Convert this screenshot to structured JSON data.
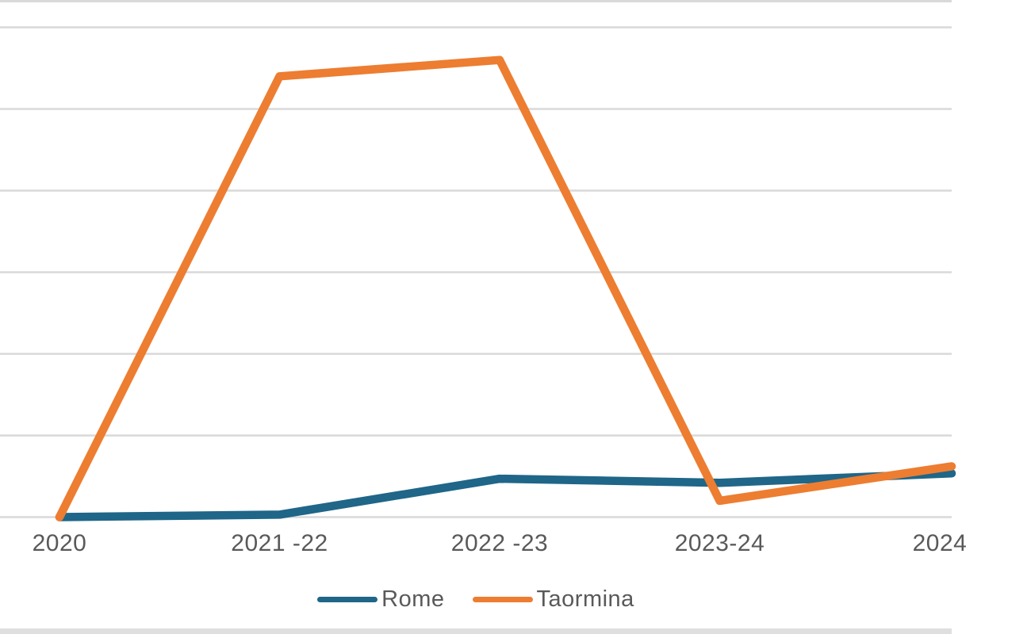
{
  "page": {
    "background": "#FFFFFF",
    "top_edge_line_color": "#D9D9D9",
    "bottom_bar_color": "#DFDFDF"
  },
  "chart_data": {
    "type": "line",
    "title": "",
    "categories": [
      "2020",
      "2021 -22",
      "2022 -23",
      "2023-24",
      "2024"
    ],
    "series": [
      {
        "name": "Rome",
        "color": "#1F6688",
        "values": [
          0,
          0.03,
          0.47,
          0.42,
          0.53
        ]
      },
      {
        "name": "Taormina",
        "color": "#ED7D31",
        "values": [
          0,
          5.4,
          5.6,
          0.2,
          0.6
        ]
      }
    ],
    "xlabel": "",
    "ylabel": "",
    "ylim": [
      0,
      6.3
    ],
    "y_gridline_interval": 1,
    "grid": "horizontal",
    "legend_position": "bottom",
    "axis_label_color": "#595959",
    "gridline_color": "#D9D9D9",
    "y_axis_tick_labels_visible": false,
    "last_x_label_clipped": true
  }
}
